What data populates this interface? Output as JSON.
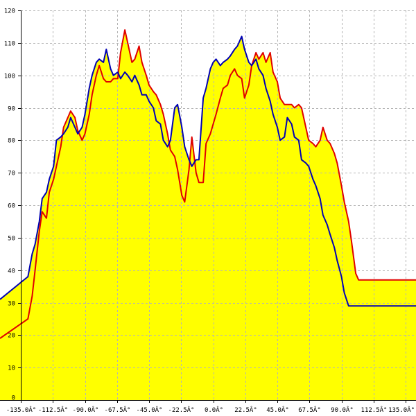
{
  "chart_data": {
    "type": "area",
    "x_ticks": [
      "-135.0Â°",
      "-112.5Â°",
      "-90.0Â°",
      "-67.5Â°",
      "-45.0Â°",
      "-22.5Â°",
      "0.0Â°",
      "22.5Â°",
      "45.0Â°",
      "67.5Â°",
      "90.0Â°",
      "112.5Â°",
      "135.0Â°"
    ],
    "y_ticks": [
      "0",
      "10",
      "20",
      "30",
      "40",
      "50",
      "60",
      "70",
      "80",
      "90",
      "100",
      "110",
      "120"
    ],
    "xlim": [
      -135,
      135
    ],
    "ylim": [
      0,
      120
    ],
    "grid": true,
    "colors": {
      "fill": "#ffff00",
      "series_a": "#e00000",
      "series_b": "#0000b4",
      "grid": "#b4b4b4"
    },
    "series": [
      {
        "color": "#e00000",
        "x": [
          -135,
          -130,
          -127,
          -125,
          -122,
          -120,
          -117,
          -115,
          -112,
          -110,
          -107,
          -105,
          -102,
          -100,
          -97,
          -95,
          -92,
          -90,
          -87,
          -85,
          -82,
          -80,
          -77,
          -75,
          -72,
          -70,
          -67,
          -65,
          -62,
          -60,
          -57,
          -55,
          -52,
          -50,
          -47,
          -45,
          -42,
          -40,
          -37,
          -35,
          -32,
          -30,
          -27,
          -25,
          -22,
          -20,
          -17,
          -15,
          -12,
          -10,
          -7,
          -5,
          -2,
          0,
          2,
          5,
          7,
          10,
          12,
          15,
          17,
          20,
          22,
          25,
          27,
          30,
          32,
          35,
          37,
          40,
          42,
          45,
          47,
          50,
          52,
          55,
          57,
          60,
          62,
          65,
          67,
          70,
          72,
          75,
          77,
          80,
          82,
          85,
          87,
          90,
          92,
          95,
          97,
          100,
          102,
          105,
          107,
          110,
          112,
          115,
          117,
          120,
          122,
          125,
          127,
          130,
          132,
          135
        ],
        "y": [
          19,
          25,
          32,
          40,
          52,
          58,
          56,
          64,
          68,
          72,
          78,
          84,
          87,
          89,
          87,
          83,
          80,
          82,
          88,
          94,
          100,
          103,
          99,
          98,
          98,
          99,
          99,
          107,
          114,
          110,
          104,
          105,
          109,
          104,
          100,
          97,
          95,
          94,
          91,
          88,
          82,
          77,
          75,
          71,
          63,
          61,
          71,
          81,
          70,
          67,
          67,
          79,
          82,
          85,
          88,
          93,
          96,
          97,
          100,
          102,
          100,
          99,
          93,
          97,
          103,
          107,
          105,
          107,
          104,
          107,
          101,
          98,
          93,
          91,
          91,
          91,
          90,
          91,
          90,
          84,
          80,
          79,
          78,
          80,
          84,
          80,
          79,
          76,
          73,
          66,
          61,
          55,
          49,
          39,
          37,
          37,
          37,
          37,
          37,
          37,
          37,
          37,
          37,
          37,
          37,
          37,
          37,
          37
        ]
      },
      {
        "color": "#0000b4",
        "x": [
          -135,
          -130,
          -127,
          -125,
          -122,
          -120,
          -117,
          -115,
          -112,
          -110,
          -107,
          -105,
          -102,
          -100,
          -97,
          -95,
          -92,
          -90,
          -87,
          -85,
          -82,
          -80,
          -77,
          -75,
          -72,
          -70,
          -67,
          -65,
          -62,
          -60,
          -57,
          -55,
          -52,
          -50,
          -47,
          -45,
          -42,
          -40,
          -37,
          -35,
          -32,
          -30,
          -27,
          -25,
          -22,
          -20,
          -17,
          -15,
          -12,
          -10,
          -7,
          -5,
          -2,
          0,
          2,
          5,
          7,
          10,
          12,
          15,
          17,
          20,
          22,
          25,
          27,
          30,
          32,
          35,
          37,
          40,
          42,
          45,
          47,
          50,
          52,
          55,
          57,
          60,
          62,
          65,
          67,
          70,
          72,
          75,
          77,
          80,
          82,
          85,
          87,
          90,
          92,
          95,
          97,
          100,
          102,
          105,
          107,
          110,
          112,
          115,
          117,
          120,
          122,
          125,
          127,
          130,
          132,
          135
        ],
        "y": [
          31,
          38,
          45,
          48,
          55,
          62,
          64,
          68,
          72,
          80,
          81,
          82,
          84,
          87,
          84,
          82,
          84,
          88,
          96,
          100,
          104,
          105,
          104,
          108,
          102,
          100,
          101,
          99,
          101,
          100,
          98,
          100,
          97,
          94,
          94,
          92,
          90,
          86,
          85,
          80,
          78,
          80,
          90,
          91,
          84,
          78,
          74,
          72,
          74,
          74,
          93,
          96,
          102,
          104,
          105,
          103,
          104,
          105,
          106,
          108,
          109,
          112,
          108,
          104,
          103,
          105,
          102,
          100,
          96,
          92,
          88,
          84,
          80,
          81,
          87,
          85,
          81,
          80,
          74,
          73,
          72,
          68,
          66,
          62,
          57,
          54,
          51,
          47,
          43,
          38,
          33,
          29,
          29,
          29,
          29,
          29,
          29,
          29,
          29,
          29,
          29,
          29,
          29,
          29,
          29,
          29,
          29,
          29
        ]
      }
    ]
  }
}
